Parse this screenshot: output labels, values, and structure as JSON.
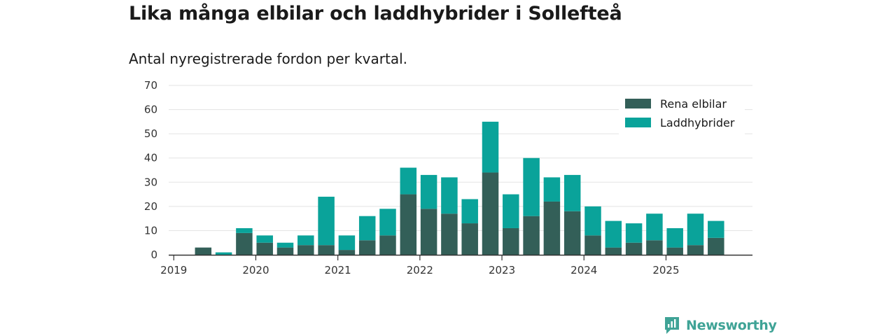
{
  "colors": {
    "elbil": "#335f58",
    "laddhybrid": "#0aa39a",
    "grid": "#e3e3e3",
    "axis": "#333333",
    "brand": "#3fa396"
  },
  "brand": {
    "name": "Newsworthy",
    "icon": "newsworthy-logo-icon"
  },
  "chart_data": {
    "type": "bar",
    "stacked": true,
    "title": "Lika många elbilar och laddhybrider i Sollefteå",
    "subtitle": "Antal nyregistrerade fordon per kvartal.",
    "xlabel": "",
    "ylabel": "",
    "ylim": [
      0,
      70
    ],
    "yticks": [
      0,
      10,
      20,
      30,
      40,
      50,
      60,
      70
    ],
    "grid": true,
    "legend_position": "top-right",
    "xtick_labels": [
      "2019",
      "2020",
      "2021",
      "2022",
      "2023",
      "2024",
      "2025"
    ],
    "categories": [
      "2019-Q1",
      "2019-Q2",
      "2019-Q3",
      "2019-Q4",
      "2020-Q1",
      "2020-Q2",
      "2020-Q3",
      "2020-Q4",
      "2021-Q1",
      "2021-Q2",
      "2021-Q3",
      "2021-Q4",
      "2022-Q1",
      "2022-Q2",
      "2022-Q3",
      "2022-Q4",
      "2023-Q1",
      "2023-Q2",
      "2023-Q3",
      "2023-Q4",
      "2024-Q1",
      "2024-Q2",
      "2024-Q3",
      "2024-Q4",
      "2025-Q1",
      "2025-Q2",
      "2025-Q3"
    ],
    "series": [
      {
        "name": "Rena elbilar",
        "values": [
          0,
          3,
          0,
          9,
          5,
          3,
          4,
          4,
          2,
          6,
          8,
          25,
          19,
          17,
          13,
          34,
          11,
          16,
          22,
          18,
          8,
          3,
          5,
          6,
          3,
          4,
          7
        ]
      },
      {
        "name": "Laddhybrider",
        "values": [
          0,
          0,
          1,
          2,
          3,
          2,
          4,
          20,
          6,
          10,
          11,
          11,
          14,
          15,
          10,
          21,
          14,
          24,
          10,
          15,
          12,
          11,
          8,
          11,
          8,
          13,
          7
        ]
      }
    ]
  }
}
